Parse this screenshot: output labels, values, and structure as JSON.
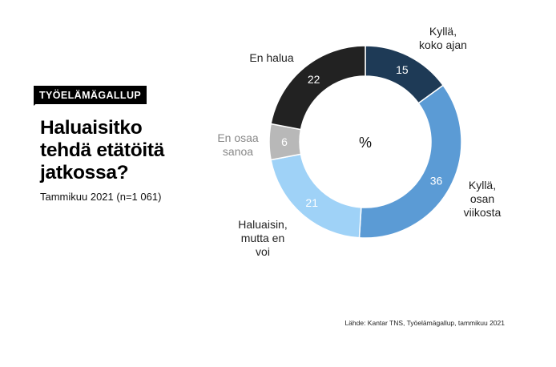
{
  "header": {
    "kicker": "TYÖELÄMÄGALLUP",
    "title": "Haluaisitko\ntehdä etätöitä\njatkossa?",
    "subtitle": "Tammikuu 2021 (n=1 061)"
  },
  "footer": {
    "source": "Lähde: Kantar TNS, Työelämägallup, tammikuu 2021"
  },
  "chart_data": {
    "type": "pie",
    "donut": true,
    "center_label": "%",
    "legend": "none",
    "slices": [
      {
        "label": "Kyllä,\nkoko ajan",
        "value": 15,
        "color": "#1e3a56",
        "value_color": "#ffffff",
        "label_color": "#222222"
      },
      {
        "label": "Kyllä,\nosan\nviikosta",
        "value": 36,
        "color": "#5b9bd5",
        "value_color": "#ffffff",
        "label_color": "#222222"
      },
      {
        "label": "Haluaisin,\nmutta en\nvoi",
        "value": 21,
        "color": "#9fd2f7",
        "value_color": "#ffffff",
        "label_color": "#222222"
      },
      {
        "label": "En osaa\nsanoa",
        "value": 6,
        "color": "#b8b8b8",
        "value_color": "#ffffff",
        "label_color": "#888888"
      },
      {
        "label": "En halua",
        "value": 22,
        "color": "#222222",
        "value_color": "#ffffff",
        "label_color": "#222222"
      }
    ]
  }
}
